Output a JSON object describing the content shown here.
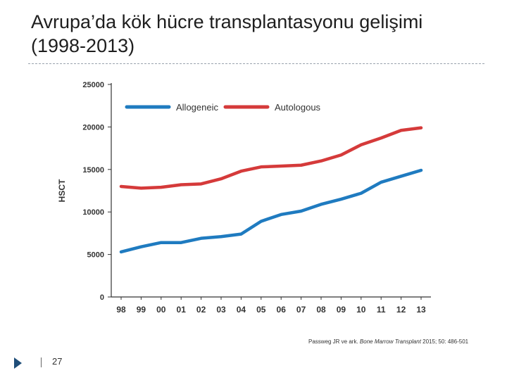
{
  "slide": {
    "title": "Avrupa’da kök hücre transplantasyonu gelişimi (1998-2013)",
    "citation_authors": "Passweg JR ve ark. ",
    "citation_journal": "Bone Marrow Transplant",
    "citation_ref": " 2015; 50: 486-501",
    "page_number": "27"
  },
  "chart_data": {
    "type": "line",
    "ylabel": "HSCT",
    "xlabel": "",
    "ylim": [
      0,
      25000
    ],
    "yticks": [
      "0",
      "5000",
      "10000",
      "15000",
      "20000",
      "25000"
    ],
    "ytick_values": [
      0,
      5000,
      10000,
      15000,
      20000,
      25000
    ],
    "categories": [
      "98",
      "99",
      "00",
      "01",
      "02",
      "03",
      "04",
      "05",
      "06",
      "07",
      "08",
      "09",
      "10",
      "11",
      "12",
      "13"
    ],
    "grid": false,
    "legend": "top-left",
    "series": [
      {
        "name": "Allogeneic",
        "color": "#1f7bc0",
        "values": [
          5300,
          5900,
          6400,
          6400,
          6900,
          7100,
          7400,
          8900,
          9700,
          10100,
          10900,
          11500,
          12200,
          13500,
          14200,
          14900
        ]
      },
      {
        "name": "Autologous",
        "color": "#d53a3a",
        "values": [
          13000,
          12800,
          12900,
          13200,
          13300,
          13900,
          14800,
          15300,
          15400,
          15500,
          16000,
          16700,
          17900,
          18700,
          19600,
          19900
        ]
      }
    ]
  }
}
